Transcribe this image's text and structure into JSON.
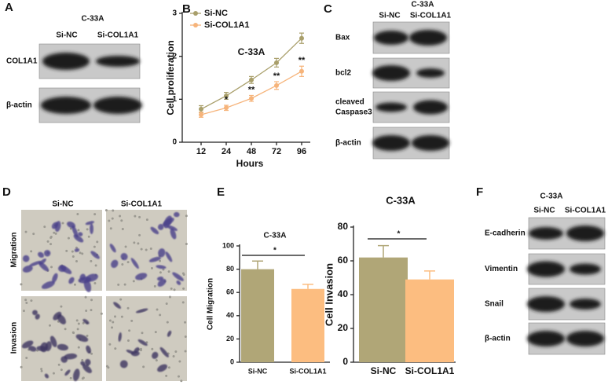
{
  "panels": {
    "A": {
      "label": "A",
      "title": "C-33A",
      "columns": [
        "Si-NC",
        "Si-COL1A1"
      ],
      "rows": [
        "COL1A1",
        "β-actin"
      ]
    },
    "B": {
      "label": "B"
    },
    "C": {
      "label": "C",
      "title": "C-33A",
      "columns": [
        "Si-NC",
        "Si-COL1A1"
      ],
      "rows": [
        "Bax",
        "bcl2",
        [
          "cleaved",
          "Caspase3"
        ],
        "β-actin"
      ]
    },
    "D": {
      "label": "D",
      "columns": [
        "Si-NC",
        "Si-COL1A1"
      ],
      "rows": [
        "Migration",
        "Invasion"
      ]
    },
    "E": {
      "label": "E"
    },
    "F": {
      "label": "F",
      "title": "C-33A",
      "columns": [
        "Si-NC",
        "Si-COL1A1"
      ],
      "rows": [
        "E-cadherin",
        "Vimentin",
        "Snail",
        "β-actin"
      ]
    }
  },
  "chart_data": [
    {
      "type": "line",
      "title": "C-33A",
      "x_label": "Hours",
      "y_label": "Cell proliferation",
      "categories": [
        "12",
        "24",
        "48",
        "72",
        "96"
      ],
      "series": [
        {
          "name": "Si-NC",
          "color": "#a99f6b",
          "values": [
            0.77,
            1.08,
            1.45,
            1.85,
            2.42
          ],
          "errors": [
            0.08,
            0.08,
            0.08,
            0.1,
            0.12
          ]
        },
        {
          "name": "Si-COL1A1",
          "color": "#f6b47b",
          "values": [
            0.64,
            0.8,
            1.02,
            1.32,
            1.65
          ],
          "errors": [
            0.06,
            0.06,
            0.07,
            0.09,
            0.12
          ]
        }
      ],
      "annotations": [
        {
          "x": "24",
          "text": "*"
        },
        {
          "x": "48",
          "text": "**"
        },
        {
          "x": "72",
          "text": "**"
        },
        {
          "x": "96",
          "text": "**"
        }
      ],
      "ylim": [
        0,
        3
      ],
      "yticks": [
        0,
        1,
        2,
        3
      ],
      "legend": "top-left"
    },
    {
      "type": "bar",
      "title": "C-33A",
      "y_label": "Cell Migration",
      "categories": [
        "Si-NC",
        "Si-COL1A1"
      ],
      "values": [
        80,
        63
      ],
      "errors": [
        7,
        4
      ],
      "colors": [
        "#b0a677",
        "#fcbd80"
      ],
      "annotations": [
        {
          "text": "*"
        }
      ],
      "ylim": [
        0,
        100
      ],
      "yticks": [
        0,
        20,
        40,
        60,
        80,
        100
      ]
    },
    {
      "type": "bar",
      "title": "C-33A",
      "y_label": "Cell Invasion",
      "categories": [
        "Si-NC",
        "Si-COL1A1"
      ],
      "values": [
        62,
        49
      ],
      "errors": [
        7,
        5
      ],
      "colors": [
        "#b0a677",
        "#fcbd80"
      ],
      "annotations": [
        {
          "text": "*"
        }
      ],
      "ylim": [
        0,
        80
      ],
      "yticks": [
        0,
        20,
        40,
        60,
        80
      ]
    }
  ]
}
